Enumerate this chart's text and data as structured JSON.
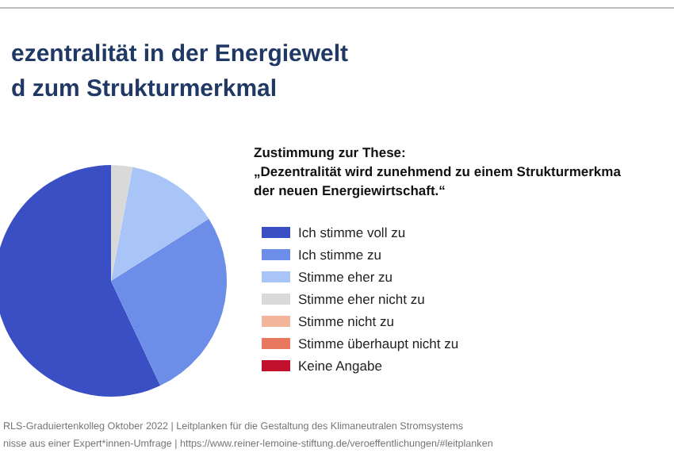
{
  "chart_data": {
    "type": "pie",
    "title": "ezentralität in der Energiewelt\nd zum Strukturmerkmal",
    "legend_title": "Zustimmung zur These:\n„Dezentralität wird zunehmend zu einem Strukturmerkma\nder neuen Energiewirtschaft.“",
    "categories": [
      "Ich stimme voll zu",
      "Ich stimme zu",
      "Stimme eher zu",
      "Stimme eher nicht zu",
      "Stimme nicht zu",
      "Stimme überhaupt nicht zu",
      "Keine Angabe"
    ],
    "values": [
      57,
      27,
      13,
      3,
      0,
      0,
      0
    ],
    "colors": [
      "#3a4fc4",
      "#6d8ee8",
      "#a9c4f7",
      "#d9d9d9",
      "#f4b59d",
      "#e8775f",
      "#c0102c"
    ],
    "legend": "right",
    "annotations": [
      "RLS-Graduiertenkolleg Oktober 2022 | Leitplanken für die Gestaltung des Klimaneutralen Stromsystems",
      "nisse aus einer Expert*innen-Umfrage | https://www.reiner-lemoine-stiftung.de/veroeffentlichungen/#leitplanken"
    ]
  }
}
